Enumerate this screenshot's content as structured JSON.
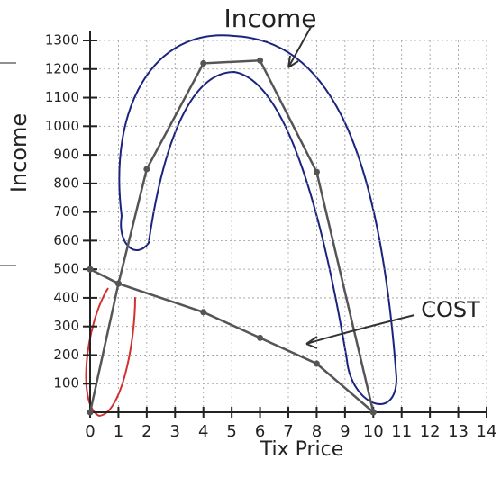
{
  "chart_data": {
    "type": "line",
    "xlabel": "Tix Price",
    "ylabel": "Income",
    "xlim": [
      0,
      14
    ],
    "xticks": [
      0,
      1,
      2,
      3,
      4,
      5,
      6,
      7,
      8,
      9,
      10,
      11,
      12,
      13,
      14
    ],
    "ylim": [
      0,
      1300
    ],
    "yticks": [
      100,
      200,
      300,
      400,
      500,
      600,
      700,
      800,
      900,
      1000,
      1100,
      1200,
      1300
    ],
    "grid": true,
    "series": [
      {
        "name": "Income",
        "color": "#555555",
        "x": [
          0,
          1,
          2,
          4,
          6,
          8,
          10
        ],
        "values": [
          0,
          450,
          850,
          1220,
          1230,
          840,
          0
        ]
      },
      {
        "name": "COST",
        "color": "#555555",
        "x": [
          0,
          1,
          4,
          6,
          8,
          10
        ],
        "values": [
          500,
          450,
          350,
          260,
          170,
          0
        ]
      }
    ]
  }
}
